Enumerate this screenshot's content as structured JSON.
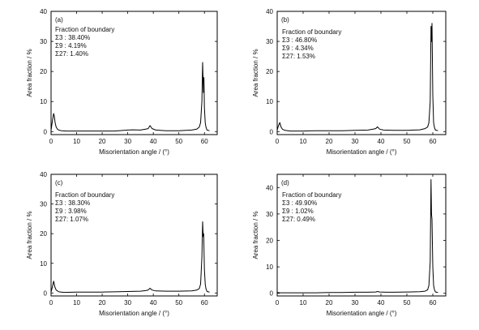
{
  "chart_data": [
    {
      "type": "line",
      "panel_label": "(a)",
      "xlabel": "Misorientation angle / (°)",
      "ylabel": "Area fraction / %",
      "xlim": [
        0,
        65
      ],
      "ylim": [
        -1,
        40
      ],
      "xticks": [
        0,
        10,
        20,
        30,
        40,
        50,
        60
      ],
      "yticks": [
        0,
        10,
        20,
        30,
        40
      ],
      "annotation": [
        "Fraction of boundary",
        "Σ3  : 38.40%",
        "Σ9  : 4.19%",
        "Σ27: 1.40%"
      ],
      "series": [
        {
          "x": [
            0,
            0.5,
            1,
            1.3,
            1.6,
            2,
            2.5,
            3,
            4,
            6,
            10,
            15,
            20,
            25,
            30,
            32,
            35,
            37,
            38,
            38.7,
            39.5,
            41,
            45,
            50,
            55,
            57,
            58,
            58.5,
            59,
            59.3,
            59.6,
            59.8,
            60,
            60.3,
            60.6,
            61,
            62
          ],
          "y": [
            0.4,
            3.5,
            6,
            5,
            3,
            1.5,
            0.8,
            0.5,
            0.3,
            0.2,
            0.2,
            0.2,
            0.2,
            0.2,
            0.5,
            0.6,
            0.5,
            0.8,
            1,
            2,
            1,
            0.5,
            0.3,
            0.3,
            0.5,
            0.8,
            1.5,
            3,
            10,
            23,
            13,
            18,
            8,
            3,
            1.5,
            0.5,
            0.3
          ]
        }
      ]
    },
    {
      "type": "line",
      "panel_label": "(b)",
      "xlabel": "Misorientation angle / (°)",
      "ylabel": "Area fraction / %",
      "xlim": [
        0,
        65
      ],
      "ylim": [
        -1,
        40
      ],
      "xticks": [
        0,
        10,
        20,
        30,
        40,
        50,
        60
      ],
      "yticks": [
        0,
        10,
        20,
        30,
        40
      ],
      "annotation": [
        "Fraction of boundary",
        "Σ3  : 46.80%",
        "Σ9  : 4.34%",
        "Σ27: 1.53%"
      ],
      "series": [
        {
          "x": [
            0,
            0.5,
            1,
            1.5,
            2,
            3,
            5,
            10,
            15,
            20,
            25,
            30,
            35,
            37,
            38,
            38.7,
            39.5,
            41,
            45,
            50,
            55,
            57,
            58,
            58.5,
            59,
            59.3,
            59.5,
            59.7,
            60,
            60.3,
            60.6,
            61,
            62
          ],
          "y": [
            0.5,
            2,
            3,
            1.5,
            0.8,
            0.4,
            0.2,
            0.2,
            0.3,
            0.3,
            0.3,
            0.4,
            0.5,
            0.8,
            1,
            1.6,
            0.8,
            0.5,
            0.4,
            0.4,
            0.6,
            1,
            1.5,
            3,
            10,
            35,
            30,
            36,
            12,
            3,
            1.5,
            0.5,
            0.3
          ]
        }
      ]
    },
    {
      "type": "line",
      "panel_label": "(c)",
      "xlabel": "Misorientation angle / (°)",
      "ylabel": "Area fraction / %",
      "xlim": [
        0,
        65
      ],
      "ylim": [
        -1,
        40
      ],
      "xticks": [
        0,
        10,
        20,
        30,
        40,
        50,
        60
      ],
      "yticks": [
        0,
        10,
        20,
        30,
        40
      ],
      "annotation": [
        "Fraction of boundary",
        "Σ3  : 38.30%",
        "Σ9  : 3.98%",
        "Σ27: 1.07%"
      ],
      "series": [
        {
          "x": [
            0,
            0.5,
            1,
            1.5,
            2,
            3,
            5,
            10,
            15,
            20,
            25,
            30,
            35,
            37,
            38,
            38.7,
            39.5,
            41,
            45,
            50,
            55,
            57,
            58,
            58.5,
            59,
            59.3,
            59.5,
            59.7,
            60,
            60.3,
            60.6,
            61,
            62
          ],
          "y": [
            0.3,
            2,
            4,
            2,
            1,
            0.4,
            0.2,
            0.3,
            0.3,
            0.3,
            0.4,
            0.5,
            0.6,
            0.8,
            1,
            1.6,
            1,
            0.7,
            0.6,
            0.6,
            0.7,
            1,
            1.5,
            3,
            12,
            24,
            19,
            20,
            8,
            3,
            1.5,
            0.5,
            0.3
          ]
        }
      ]
    },
    {
      "type": "line",
      "panel_label": "(d)",
      "xlabel": "Misorientation angle / (°)",
      "ylabel": "Area fraction / %",
      "xlim": [
        0,
        65
      ],
      "ylim": [
        -1,
        45
      ],
      "xticks": [
        0,
        10,
        20,
        30,
        40,
        50,
        60
      ],
      "yticks": [
        0,
        10,
        20,
        30,
        40
      ],
      "annotation": [
        "Fraction of boundary",
        "Σ3  : 49.90%",
        "Σ9  : 1.02%",
        "Σ27: 0.49%"
      ],
      "series": [
        {
          "x": [
            0,
            1,
            2,
            4,
            6,
            10,
            15,
            20,
            25,
            30,
            35,
            38,
            38.7,
            39.5,
            42,
            45,
            50,
            55,
            57,
            58,
            58.5,
            59,
            59.3,
            59.5,
            59.7,
            60,
            60.3,
            60.6,
            61,
            62
          ],
          "y": [
            0.3,
            0.2,
            0.2,
            0.2,
            0.2,
            0.2,
            0.2,
            0.3,
            0.3,
            0.4,
            0.4,
            0.5,
            0.7,
            0.5,
            0.4,
            0.4,
            0.5,
            0.6,
            0.8,
            1.3,
            3,
            12,
            43,
            30,
            28,
            10,
            3,
            1.5,
            0.5,
            0.3
          ]
        }
      ]
    }
  ]
}
